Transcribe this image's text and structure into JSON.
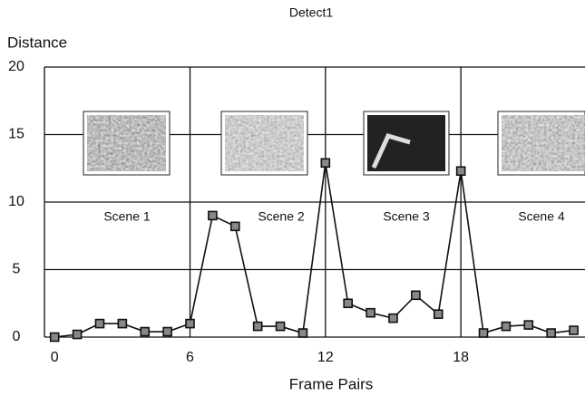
{
  "chart_data": {
    "type": "line",
    "title": "Detect1",
    "y_label": "Distance",
    "x_label": "Frame Pairs",
    "x": [
      0,
      1,
      2,
      3,
      4,
      5,
      6,
      7,
      8,
      9,
      10,
      11,
      12,
      13,
      14,
      15,
      16,
      17,
      18,
      19,
      20,
      21,
      22,
      23
    ],
    "values": [
      0,
      0.2,
      1.0,
      1.0,
      0.4,
      0.4,
      1.0,
      9.0,
      8.2,
      0.8,
      0.8,
      0.3,
      12.9,
      2.5,
      1.8,
      1.4,
      3.1,
      1.7,
      12.3,
      0.3,
      0.8,
      0.9,
      0.3,
      0.5
    ],
    "color": "#111111",
    "xlim": [
      -0.45,
      23.5
    ],
    "ylim": [
      0,
      20
    ],
    "xticks": [
      0,
      6,
      12,
      18
    ],
    "yticks": [
      0,
      5,
      10,
      15,
      20
    ],
    "grid": true,
    "annotations": [
      "Scene 1",
      "Scene 2",
      "Scene 3",
      "Scene 4"
    ]
  }
}
